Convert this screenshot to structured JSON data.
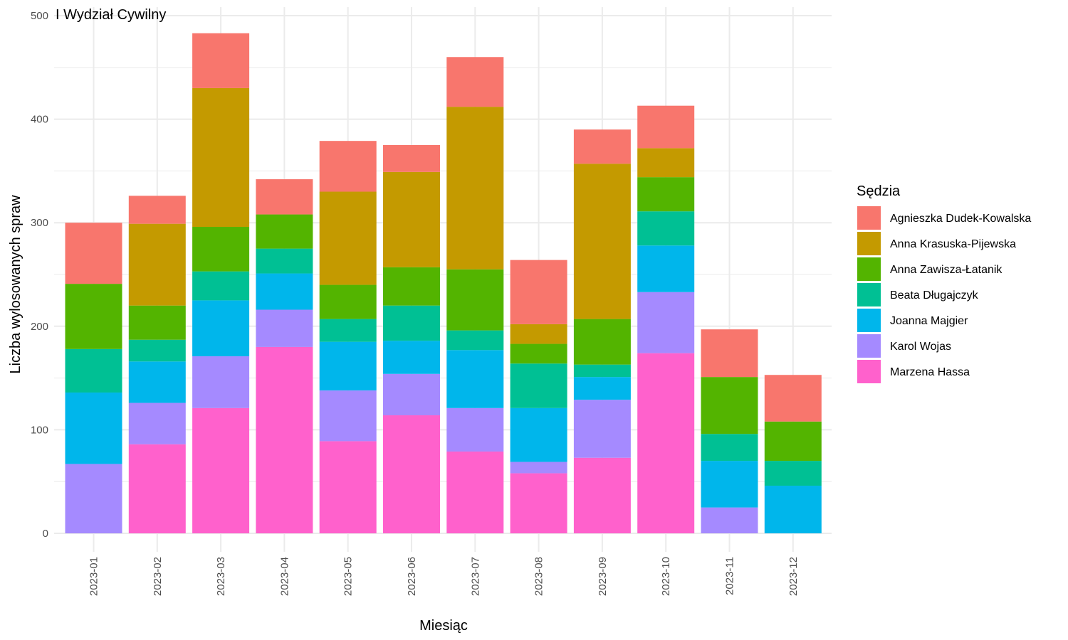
{
  "chart_data": {
    "type": "bar",
    "stacked": true,
    "title": "I Wydział Cywilny",
    "xlabel": "Miesiąc",
    "ylabel": "Liczba wylosowanych spraw",
    "ylim": [
      0,
      500
    ],
    "yticks": [
      "0",
      "100",
      "200",
      "300",
      "400",
      "500"
    ],
    "grid": true,
    "legend_title": "Sędzia",
    "legend_position": "right",
    "categories": [
      "2023-01",
      "2023-02",
      "2023-03",
      "2023-04",
      "2023-05",
      "2023-06",
      "2023-07",
      "2023-08",
      "2023-09",
      "2023-10",
      "2023-11",
      "2023-12"
    ],
    "series": [
      {
        "name": "Marzena Hassa",
        "color": "#FF61CC",
        "values": [
          0,
          86,
          121,
          180,
          89,
          114,
          79,
          58,
          73,
          174,
          0,
          0
        ]
      },
      {
        "name": "Karol Wojas",
        "color": "#A58AFF",
        "values": [
          67,
          40,
          50,
          36,
          49,
          40,
          42,
          11,
          56,
          59,
          25,
          0
        ]
      },
      {
        "name": "Joanna Majgier",
        "color": "#00B6EB",
        "values": [
          69,
          40,
          54,
          35,
          47,
          32,
          56,
          52,
          22,
          45,
          45,
          46
        ]
      },
      {
        "name": "Beata Długajczyk",
        "color": "#00C094",
        "values": [
          42,
          21,
          28,
          24,
          22,
          34,
          19,
          43,
          12,
          33,
          26,
          24
        ]
      },
      {
        "name": "Anna Zawisza-Łatanik",
        "color": "#53B400",
        "values": [
          63,
          33,
          43,
          33,
          33,
          37,
          59,
          19,
          44,
          33,
          55,
          38
        ]
      },
      {
        "name": "Anna Krasuska-Pijewska",
        "color": "#C49A00",
        "values": [
          0,
          79,
          134,
          0,
          90,
          92,
          157,
          19,
          150,
          28,
          0,
          0
        ]
      },
      {
        "name": "Agnieszka Dudek-Kowalska",
        "color": "#F8766D",
        "values": [
          59,
          27,
          53,
          34,
          49,
          26,
          48,
          62,
          33,
          41,
          46,
          45
        ]
      }
    ],
    "legend_order": [
      "Agnieszka Dudek-Kowalska",
      "Anna Krasuska-Pijewska",
      "Anna Zawisza-Łatanik",
      "Beata Długajczyk",
      "Joanna Majgier",
      "Karol Wojas",
      "Marzena Hassa"
    ]
  }
}
